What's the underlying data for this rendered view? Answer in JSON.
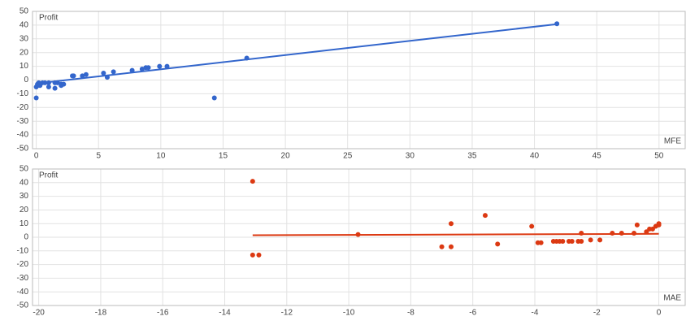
{
  "chart_data": [
    {
      "type": "scatter",
      "y_label": "Profit",
      "x_label": "MFE",
      "grid": true,
      "xlim": [
        -0.3,
        52.1
      ],
      "xticks": [
        0,
        5,
        10,
        15,
        20,
        25,
        30,
        35,
        40,
        45,
        50
      ],
      "ylim": [
        -50,
        50
      ],
      "yticks": [
        -50,
        -40,
        -30,
        -20,
        -10,
        0,
        10,
        20,
        30,
        40,
        50
      ],
      "series": [
        {
          "color": "#3366cc",
          "x": [
            0,
            0,
            0.1,
            0.2,
            0.3,
            0.5,
            0.7,
            1,
            1,
            1.5,
            1.5,
            1.7,
            2,
            2,
            2.2,
            2.9,
            3,
            3.7,
            4,
            5.4,
            5.7,
            6.2,
            7.7,
            8.5,
            8.8,
            9,
            9.9,
            10.5,
            14.3,
            16.9,
            41.8,
            0.1
          ],
          "values": [
            -13,
            -5,
            -3,
            -2,
            -4,
            -2,
            -2,
            -2,
            -5,
            -6,
            -2,
            -2,
            -3,
            -4,
            -3,
            3,
            3,
            3,
            4,
            5,
            2,
            6,
            7,
            8,
            9,
            9,
            10,
            10,
            -13,
            16,
            41,
            -4
          ]
        }
      ],
      "trendline": {
        "color": "#3366cc",
        "x": [
          0,
          41.8
        ],
        "values": [
          -2.5,
          40.7
        ]
      }
    },
    {
      "type": "scatter",
      "y_label": "Profit",
      "x_label": "MAE",
      "grid": true,
      "xlim": [
        -20.2,
        0.85
      ],
      "xticks": [
        -20,
        -18,
        -16,
        -14,
        -12,
        -10,
        -8,
        -6,
        -4,
        -2,
        0
      ],
      "ylim": [
        -50,
        50
      ],
      "yticks": [
        -50,
        -40,
        -30,
        -20,
        -10,
        0,
        10,
        20,
        30,
        40,
        50
      ],
      "series": [
        {
          "color": "#dc3912",
          "x": [
            -13.1,
            -13.1,
            -12.9,
            -9.7,
            -7,
            -6.7,
            -6.7,
            -5.6,
            -5.2,
            -4.1,
            -3.9,
            -3.8,
            -3.4,
            -3.3,
            -3.2,
            -3.1,
            -2.9,
            -2.8,
            -2.6,
            -2.5,
            -2.5,
            -2.2,
            -1.9,
            -1.5,
            -1.2,
            -0.8,
            -0.7,
            -0.4,
            -0.3,
            -0.2,
            -0.1,
            0,
            0
          ],
          "values": [
            41,
            -13,
            -13,
            2,
            -7,
            10,
            -7,
            16,
            -5,
            8,
            -4,
            -4,
            -3,
            -3,
            -3,
            -3,
            -3,
            -3,
            -3,
            3,
            -3,
            -2,
            -2,
            3,
            3,
            3,
            9,
            4,
            6,
            6,
            8,
            9,
            10
          ]
        }
      ],
      "trendline": {
        "color": "#dc3912",
        "x": [
          -13.1,
          0
        ],
        "values": [
          1.5,
          2.5
        ]
      }
    }
  ]
}
